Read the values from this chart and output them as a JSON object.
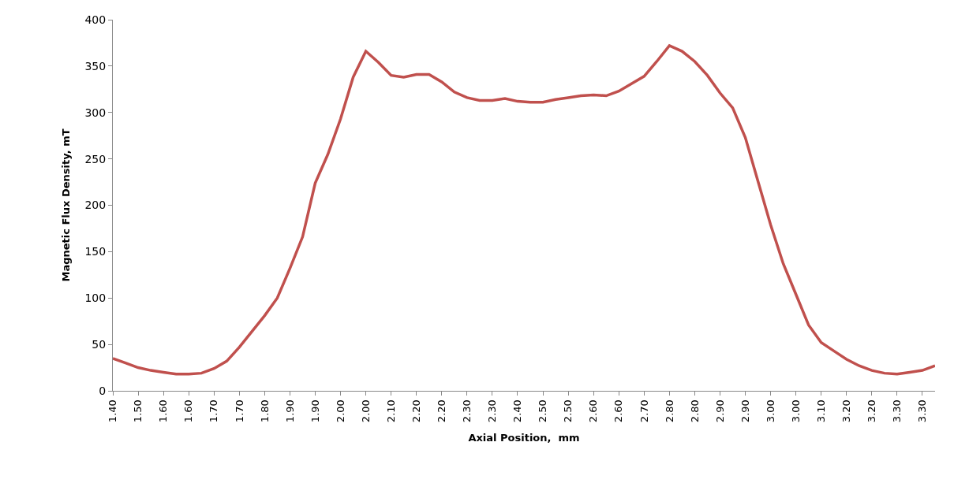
{
  "chart_data": {
    "type": "line",
    "xlabel": "Axial Position,  mm",
    "ylabel": "Magnetic Flux Density, mT",
    "categories": [
      "1.40",
      null,
      "1.50",
      null,
      "1.60",
      null,
      "1.60",
      null,
      "1.70",
      null,
      "1.70",
      null,
      "1.80",
      null,
      "1.90",
      null,
      "1.90",
      null,
      "2.00",
      null,
      "2.00",
      null,
      "2.10",
      null,
      "2.20",
      null,
      "2.20",
      null,
      "2.30",
      null,
      "2.30",
      null,
      "2.40",
      null,
      "2.50",
      null,
      "2.50",
      null,
      "2.60",
      null,
      "2.60",
      null,
      "2.70",
      null,
      "2.80",
      null,
      "2.80",
      null,
      "2.90",
      null,
      "2.90",
      null,
      "3.00",
      null,
      "3.00",
      null,
      "3.10",
      null,
      "3.20",
      null,
      "3.20",
      null,
      "3.30",
      null,
      "3.30",
      null
    ],
    "series": [
      {
        "color": "#c0504d",
        "values": [
          35,
          30,
          25,
          22,
          20,
          18,
          18,
          19,
          24,
          32,
          47,
          64,
          81,
          100,
          132,
          166,
          224,
          255,
          293,
          338,
          366,
          354,
          340,
          338,
          341,
          341,
          333,
          322,
          316,
          313,
          313,
          315,
          312,
          311,
          311,
          314,
          316,
          318,
          319,
          318,
          323,
          331,
          339,
          355,
          372,
          366,
          355,
          340,
          321,
          305,
          273,
          226,
          179,
          137,
          104,
          71,
          52,
          43,
          34,
          27,
          22,
          19,
          18,
          20,
          22,
          27
        ]
      }
    ],
    "ylim": [
      0,
      400
    ],
    "yticks": [
      0,
      50,
      100,
      150,
      200,
      250,
      300,
      350,
      400
    ],
    "marker": "none",
    "line_style": "solid"
  }
}
